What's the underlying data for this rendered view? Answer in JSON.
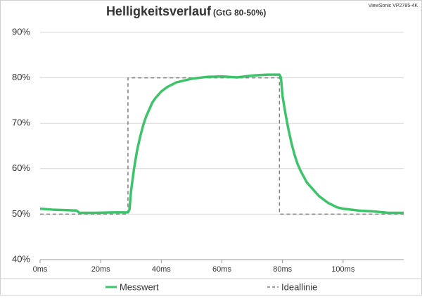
{
  "chart_data": {
    "type": "line",
    "title": "Helligkeitsverlauf",
    "subtitle": "(GtG 80-50%)",
    "annotation": "ViewSonic VP2785-4K",
    "xlim": [
      0,
      120
    ],
    "ylim": [
      40,
      90
    ],
    "xticks": [
      {
        "value": 0,
        "label": "0ms"
      },
      {
        "value": 20,
        "label": "20ms"
      },
      {
        "value": 40,
        "label": "40ms"
      },
      {
        "value": 60,
        "label": "60ms"
      },
      {
        "value": 80,
        "label": "80ms"
      },
      {
        "value": 100,
        "label": "100ms"
      }
    ],
    "yticks": [
      {
        "value": 40,
        "label": "40%"
      },
      {
        "value": 50,
        "label": "50%"
      },
      {
        "value": 60,
        "label": "60%"
      },
      {
        "value": 70,
        "label": "70%"
      },
      {
        "value": 80,
        "label": "80%"
      },
      {
        "value": 90,
        "label": "90%"
      }
    ],
    "grid": true,
    "legend": "bottom",
    "series": [
      {
        "name": "Messwert",
        "color": "#3dc46b",
        "dash": false,
        "x": [
          0,
          4,
          8,
          12,
          13,
          18,
          24,
          29,
          29.5,
          30,
          31,
          32,
          33,
          34,
          35,
          36,
          37,
          38,
          40,
          42,
          45,
          50,
          55,
          60,
          65,
          70,
          75,
          79,
          79.5,
          80,
          81,
          82,
          83,
          84,
          85,
          86,
          88,
          90,
          92,
          95,
          98,
          100,
          105,
          110,
          115,
          120
        ],
        "values": [
          51.2,
          51.0,
          50.9,
          50.8,
          50.3,
          50.3,
          50.4,
          50.4,
          51,
          55,
          60,
          64,
          67,
          69.5,
          71.5,
          73,
          74.5,
          75.5,
          77,
          78,
          79,
          79.8,
          80.2,
          80.3,
          80.1,
          80.5,
          80.7,
          80.7,
          80,
          76,
          72,
          68.5,
          65.5,
          63,
          61,
          59.5,
          57,
          55.5,
          54,
          52.5,
          51.5,
          51.2,
          50.8,
          50.6,
          50.3,
          50.3
        ]
      },
      {
        "name": "Ideallinie",
        "color": "#808080",
        "dash": true,
        "x": [
          0,
          29,
          29,
          79,
          79,
          120
        ],
        "values": [
          50,
          50,
          80,
          80,
          50,
          50
        ]
      }
    ]
  }
}
